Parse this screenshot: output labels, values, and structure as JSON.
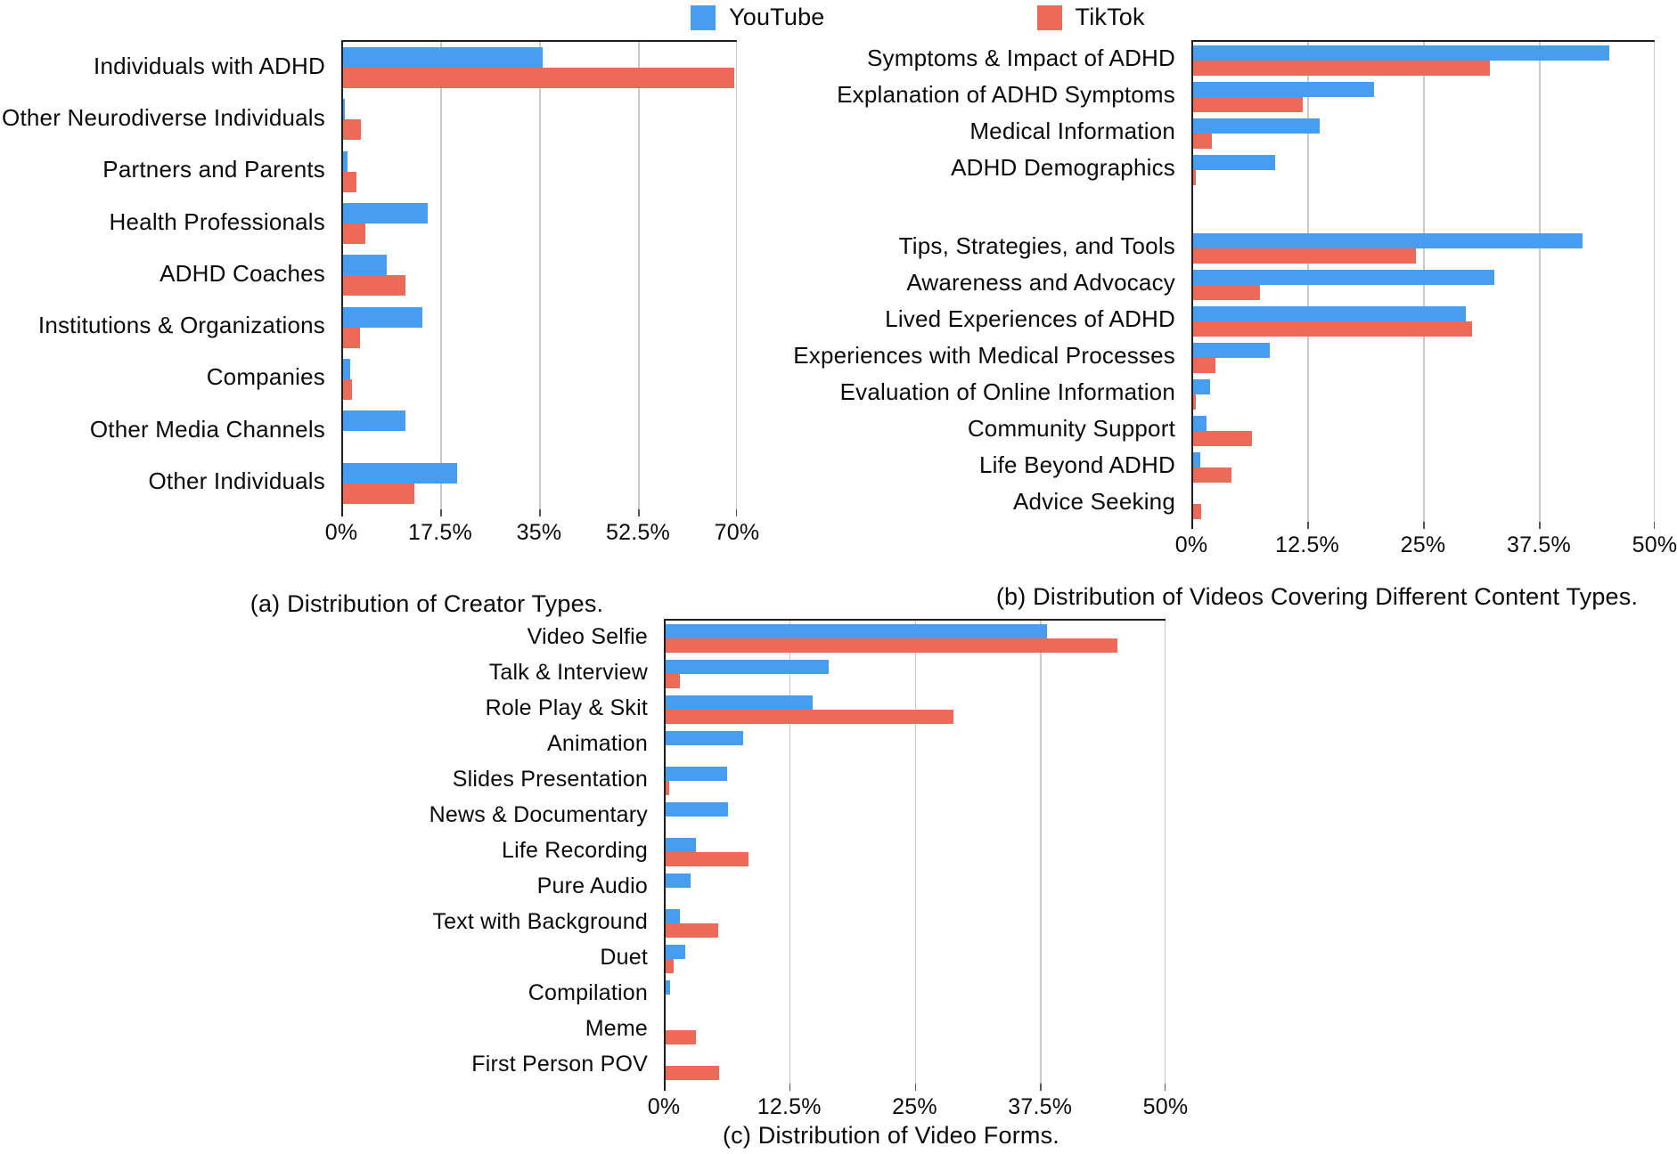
{
  "legend": {
    "items": [
      {
        "label": "YouTube",
        "color": "#479DF0"
      },
      {
        "label": "TikTok",
        "color": "#EE6A58"
      }
    ]
  },
  "colors": {
    "youtube_blue": "#479DF0",
    "tiktok_red": "#EE6A58",
    "gridline_gray": "#C9C9C9",
    "axis_black": "#1F1F1F"
  },
  "chart_data": [
    {
      "id": "a",
      "type": "bar",
      "orientation": "horizontal",
      "title": "(a) Distribution of Creator Types.",
      "categories": [
        "Individuals with ADHD",
        "Other Neurodiverse Individuals",
        "Partners and Parents",
        "Health Professionals",
        "ADHD Coaches",
        "Institutions & Organizations",
        "Companies",
        "Other Media Channels",
        "Other Individuals"
      ],
      "series": [
        {
          "name": "YouTube",
          "values": [
            35.6,
            0.7,
            1.1,
            15.3,
            8.1,
            14.4,
            1.6,
            11.3,
            20.5
          ]
        },
        {
          "name": "TikTok",
          "values": [
            69.5,
            3.4,
            2.7,
            4.2,
            11.4,
            3.3,
            1.9,
            0,
            12.9
          ]
        }
      ],
      "xlabel": "",
      "ylabel": "",
      "xlim": [
        0,
        70
      ],
      "xticks": [
        0,
        17.5,
        35,
        52.5,
        70
      ],
      "xtick_labels": [
        "0%",
        "17.5%",
        "35%",
        "52.5%",
        "70%"
      ],
      "grid": true,
      "legend_position": "top-center"
    },
    {
      "id": "b",
      "type": "bar",
      "orientation": "horizontal",
      "title": "(b) Distribution of Videos Covering Different Content Types.",
      "categories": [
        "Symptoms & Impact of ADHD",
        "Explanation of ADHD Symptoms",
        "Medical Information",
        "ADHD Demographics",
        "Tips, Strategies, and Tools",
        "Awareness and Advocacy",
        "Lived Experiences of ADHD",
        "Experiences with Medical Processes",
        "Evaluation of Online Information",
        "Community Support",
        "Life Beyond ADHD",
        "Advice Seeking"
      ],
      "group_break_after": 3,
      "series": [
        {
          "name": "YouTube",
          "values": [
            45.1,
            19.7,
            13.8,
            9.0,
            42.2,
            32.7,
            29.6,
            8.5,
            2.0,
            1.6,
            1.0,
            0
          ]
        },
        {
          "name": "TikTok",
          "values": [
            32.2,
            12.0,
            2.2,
            0.5,
            24.2,
            7.4,
            30.3,
            2.6,
            0.5,
            6.5,
            4.3,
            1.1
          ]
        }
      ],
      "xlabel": "",
      "ylabel": "",
      "xlim": [
        0,
        50
      ],
      "xticks": [
        0,
        12.5,
        25,
        37.5,
        50
      ],
      "xtick_labels": [
        "0%",
        "12.5%",
        "25%",
        "37.5%",
        "50%"
      ],
      "grid": true,
      "legend_position": "top-center"
    },
    {
      "id": "c",
      "type": "bar",
      "orientation": "horizontal",
      "title": "(c) Distribution of Video Forms.",
      "categories": [
        "Video Selfie",
        "Talk & Interview",
        "Role Play & Skit",
        "Animation",
        "Slides Presentation",
        "News & Documentary",
        "Life Recording",
        "Pure Audio",
        "Text with Background",
        "Duet",
        "Compilation",
        "Meme",
        "First Person POV"
      ],
      "series": [
        {
          "name": "YouTube",
          "values": [
            38.2,
            16.4,
            14.8,
            7.9,
            6.3,
            6.4,
            3.2,
            2.7,
            1.6,
            2.1,
            0.6,
            0,
            0
          ]
        },
        {
          "name": "TikTok",
          "values": [
            45.2,
            1.6,
            28.9,
            0,
            0.5,
            0,
            8.4,
            0,
            5.4,
            1.0,
            0,
            3.2,
            5.5
          ]
        }
      ],
      "xlabel": "",
      "ylabel": "",
      "xlim": [
        0,
        50
      ],
      "xticks": [
        0,
        12.5,
        25,
        37.5,
        50
      ],
      "xtick_labels": [
        "0%",
        "12.5%",
        "25%",
        "37.5%",
        "50%"
      ],
      "grid": true,
      "legend_position": "top-center"
    }
  ]
}
